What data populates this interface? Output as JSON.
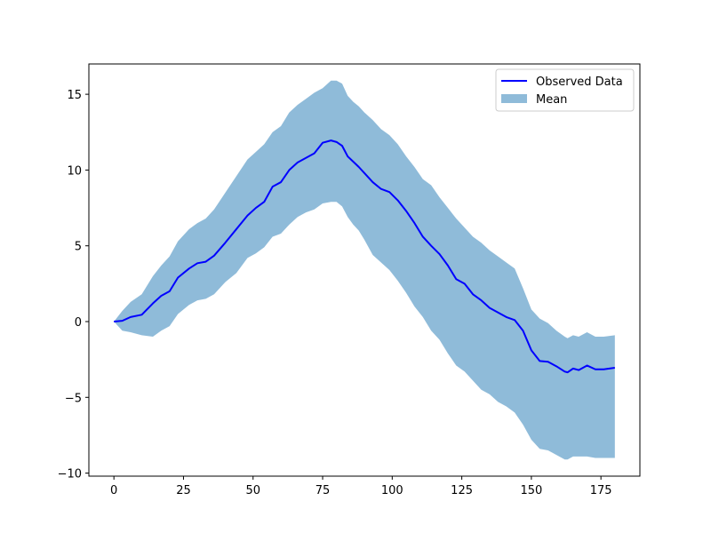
{
  "chart_data": {
    "type": "line",
    "title": "",
    "xlabel": "",
    "ylabel": "",
    "xlim": [
      -9,
      189
    ],
    "ylim": [
      -10.2,
      17.0
    ],
    "xticks": [
      0,
      25,
      50,
      75,
      100,
      125,
      150,
      175
    ],
    "yticks": [
      -10,
      -5,
      0,
      5,
      10,
      15
    ],
    "tick_labels": {
      "x": [
        "0",
        "25",
        "50",
        "75",
        "100",
        "125",
        "150",
        "175"
      ],
      "y": [
        "−10",
        "−5",
        "0",
        "5",
        "10",
        "15"
      ]
    },
    "grid": false,
    "legend_position": "top-right",
    "series": [
      {
        "name": "Observed Data",
        "kind": "line",
        "color": "#0000ff",
        "x": [
          0,
          3,
          6,
          10,
          14,
          17,
          20,
          23,
          27,
          30,
          33,
          36,
          40,
          44,
          48,
          51,
          54,
          57,
          60,
          63,
          66,
          69,
          72,
          75,
          78,
          80,
          82,
          84,
          86,
          88,
          90,
          93,
          96,
          99,
          102,
          105,
          108,
          111,
          114,
          117,
          120,
          123,
          126,
          129,
          132,
          135,
          138,
          141,
          144,
          147,
          150,
          153,
          156,
          159,
          162,
          163,
          165,
          167,
          170,
          173,
          176,
          180
        ],
        "y": [
          0.0,
          0.05,
          0.3,
          0.45,
          1.2,
          1.7,
          2.0,
          2.9,
          3.5,
          3.85,
          3.95,
          4.35,
          5.2,
          6.1,
          7.0,
          7.5,
          7.9,
          8.9,
          9.2,
          10.0,
          10.5,
          10.8,
          11.1,
          11.8,
          11.95,
          11.85,
          11.6,
          10.9,
          10.55,
          10.2,
          9.8,
          9.2,
          8.75,
          8.55,
          8.0,
          7.3,
          6.5,
          5.6,
          5.0,
          4.45,
          3.7,
          2.8,
          2.5,
          1.8,
          1.4,
          0.9,
          0.6,
          0.3,
          0.1,
          -0.6,
          -1.9,
          -2.6,
          -2.65,
          -2.95,
          -3.3,
          -3.35,
          -3.1,
          -3.2,
          -2.9,
          -3.15,
          -3.15,
          -3.05
        ]
      },
      {
        "name": "Mean",
        "kind": "band",
        "color": "#1f77b4",
        "alpha": 0.5,
        "x": [
          0,
          3,
          6,
          10,
          14,
          17,
          20,
          23,
          27,
          30,
          33,
          36,
          40,
          44,
          48,
          51,
          54,
          57,
          60,
          63,
          66,
          69,
          72,
          75,
          78,
          80,
          82,
          84,
          86,
          88,
          90,
          93,
          96,
          99,
          102,
          105,
          108,
          111,
          114,
          117,
          120,
          123,
          126,
          129,
          132,
          135,
          138,
          141,
          144,
          147,
          150,
          153,
          156,
          159,
          162,
          163,
          165,
          167,
          170,
          173,
          176,
          180
        ],
        "upper": [
          0.0,
          0.7,
          1.3,
          1.8,
          3.0,
          3.7,
          4.3,
          5.3,
          6.1,
          6.5,
          6.8,
          7.4,
          8.5,
          9.6,
          10.7,
          11.2,
          11.7,
          12.5,
          12.9,
          13.8,
          14.3,
          14.7,
          15.1,
          15.4,
          15.9,
          15.9,
          15.7,
          14.9,
          14.5,
          14.2,
          13.8,
          13.3,
          12.7,
          12.3,
          11.7,
          10.9,
          10.2,
          9.4,
          9.0,
          8.2,
          7.5,
          6.8,
          6.2,
          5.6,
          5.2,
          4.7,
          4.3,
          3.9,
          3.5,
          2.2,
          0.8,
          0.2,
          -0.1,
          -0.6,
          -1.0,
          -1.1,
          -0.9,
          -1.0,
          -0.7,
          -1.0,
          -1.0,
          -0.9
        ],
        "lower": [
          0.0,
          -0.6,
          -0.7,
          -0.9,
          -1.0,
          -0.6,
          -0.3,
          0.5,
          1.1,
          1.4,
          1.5,
          1.8,
          2.6,
          3.2,
          4.2,
          4.5,
          4.9,
          5.6,
          5.8,
          6.4,
          6.9,
          7.2,
          7.4,
          7.8,
          7.9,
          7.9,
          7.6,
          6.9,
          6.4,
          6.0,
          5.4,
          4.4,
          3.9,
          3.4,
          2.7,
          1.9,
          1.0,
          0.3,
          -0.6,
          -1.2,
          -2.1,
          -2.9,
          -3.3,
          -3.9,
          -4.5,
          -4.8,
          -5.3,
          -5.6,
          -6.0,
          -6.8,
          -7.8,
          -8.4,
          -8.5,
          -8.8,
          -9.1,
          -9.1,
          -8.9,
          -8.9,
          -8.9,
          -9.0,
          -9.0,
          -9.0
        ],
        "upper_override_note": ""
      }
    ],
    "legend": {
      "entries": [
        {
          "label": "Observed Data",
          "marker": "line",
          "color": "#0000ff"
        },
        {
          "label": "Mean",
          "marker": "patch",
          "color": "#1f77b4",
          "alpha": 0.5
        }
      ]
    }
  }
}
